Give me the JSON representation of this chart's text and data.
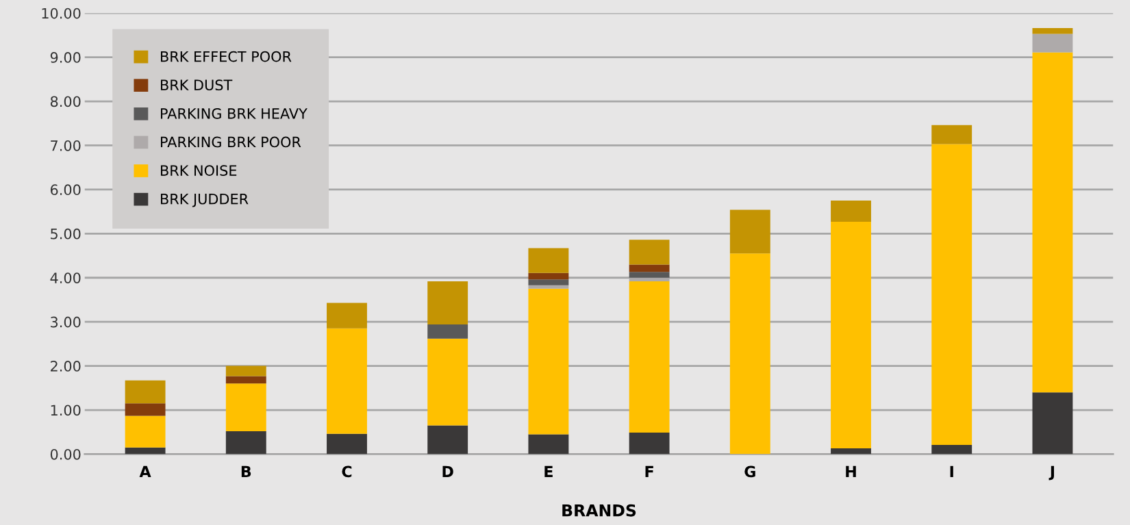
{
  "chart_data": {
    "type": "bar",
    "stacked": true,
    "xlabel": "BRANDS",
    "categories": [
      "A",
      "B",
      "C",
      "D",
      "E",
      "F",
      "G",
      "H",
      "I",
      "J"
    ],
    "series": [
      {
        "name": "BRK JUDDER",
        "color": "#3a3838",
        "values": [
          0.15,
          0.52,
          0.46,
          0.65,
          0.45,
          0.49,
          0,
          0.13,
          0.21,
          1.4
        ]
      },
      {
        "name": "BRK NOISE",
        "color": "#ffc000",
        "values": [
          0.72,
          1.08,
          2.39,
          1.97,
          3.3,
          3.43,
          4.55,
          5.14,
          6.82,
          7.71
        ]
      },
      {
        "name": "PARKING BRK POOR",
        "color": "#aeaaaa",
        "values": [
          0,
          0,
          0,
          0,
          0.08,
          0.08,
          0,
          0,
          0,
          0.42
        ]
      },
      {
        "name": "PARKING BRK HEAVY",
        "color": "#595959",
        "values": [
          0,
          0,
          0,
          0.32,
          0.13,
          0.13,
          0,
          0,
          0,
          0
        ]
      },
      {
        "name": "BRK DUST",
        "color": "#843c0c",
        "values": [
          0.28,
          0.17,
          0,
          0,
          0.15,
          0.17,
          0,
          0,
          0,
          0
        ]
      },
      {
        "name": "BRK EFFECT POOR",
        "color": "#c49403",
        "values": [
          0.52,
          0.23,
          0.58,
          0.98,
          0.56,
          0.56,
          0.99,
          0.48,
          0.43,
          0.13
        ]
      }
    ],
    "ylim": [
      0,
      10
    ],
    "yticks": [
      {
        "value": 0,
        "label": "0.00"
      },
      {
        "value": 1,
        "label": "1.00"
      },
      {
        "value": 2,
        "label": "2.00"
      },
      {
        "value": 3,
        "label": "3.00"
      },
      {
        "value": 4,
        "label": "4.00"
      },
      {
        "value": 5,
        "label": "5.00"
      },
      {
        "value": 6,
        "label": "6.00"
      },
      {
        "value": 7,
        "label": "7.00"
      },
      {
        "value": 8,
        "label": "8.00"
      },
      {
        "value": 9,
        "label": "9.00"
      },
      {
        "value": 10,
        "label": "10.00"
      }
    ],
    "grid": "y",
    "legend": "top left"
  }
}
